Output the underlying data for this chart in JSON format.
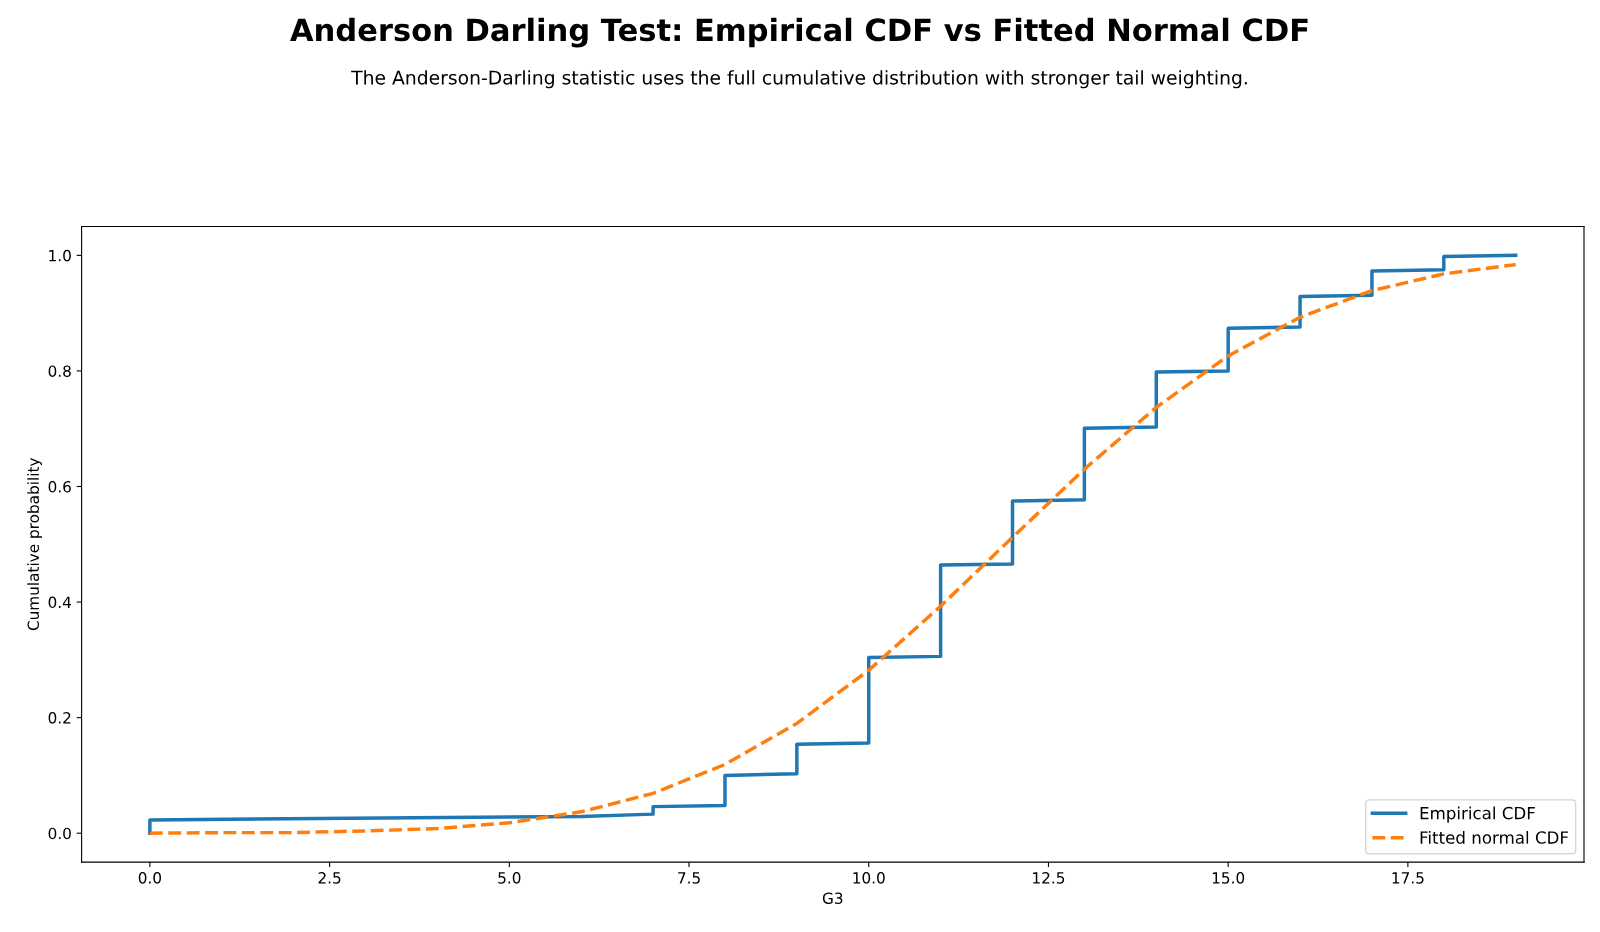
{
  "chart_data": {
    "type": "line",
    "title": "Anderson Darling Test: Empirical CDF vs Fitted Normal CDF",
    "subtitle": "The Anderson-Darling statistic uses the full cumulative distribution with stronger tail weighting.",
    "xlabel": "G3",
    "ylabel": "Cumulative probability",
    "series": [
      {
        "name": "Empirical CDF",
        "color": "#1f77b4",
        "line_style": "solid",
        "x": [
          0,
          0,
          6,
          7,
          7,
          8,
          8,
          9,
          9,
          10,
          10,
          11,
          11,
          12,
          12,
          13,
          13,
          14,
          14,
          15,
          15,
          16,
          16,
          17,
          17,
          18,
          18,
          19
        ],
        "values": [
          0,
          0.023,
          0.029,
          0.033,
          0.046,
          0.048,
          0.1,
          0.103,
          0.154,
          0.156,
          0.304,
          0.306,
          0.464,
          0.466,
          0.575,
          0.577,
          0.701,
          0.703,
          0.798,
          0.8,
          0.874,
          0.876,
          0.929,
          0.931,
          0.973,
          0.975,
          0.998,
          1.0
        ]
      },
      {
        "name": "Fitted normal CDF",
        "color": "#ff7f0e",
        "line_style": "dashed",
        "x": [
          0,
          1,
          2,
          3,
          4,
          5,
          6,
          7,
          8,
          9,
          10,
          11,
          12,
          13,
          14,
          15,
          16,
          17,
          18,
          19
        ],
        "values": [
          0.0,
          0.001,
          0.001,
          0.004,
          0.008,
          0.018,
          0.037,
          0.069,
          0.119,
          0.19,
          0.282,
          0.393,
          0.512,
          0.63,
          0.737,
          0.826,
          0.893,
          0.939,
          0.968,
          0.984
        ]
      }
    ],
    "xlim": [
      -0.95,
      19.95
    ],
    "ylim": [
      -0.05,
      1.05
    ],
    "xticks": [
      {
        "value": 0,
        "label": "0.0"
      },
      2.5,
      {
        "value": 5,
        "label": "5.0"
      },
      7.5,
      {
        "value": 10,
        "label": "10.0"
      },
      12.5,
      {
        "value": 15,
        "label": "15.0"
      },
      17.5
    ],
    "yticks": [
      {
        "value": 0,
        "label": "0.0"
      },
      0.2,
      0.4,
      0.6,
      0.8,
      {
        "value": 1,
        "label": "1.0"
      }
    ],
    "grid": false,
    "legend": "lower right"
  }
}
